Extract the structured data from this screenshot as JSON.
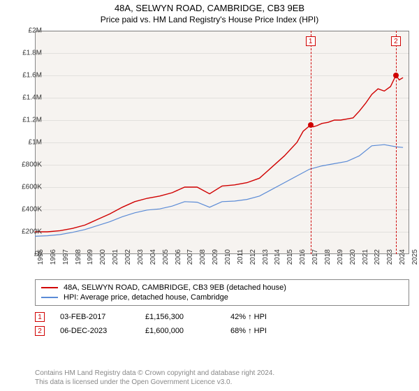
{
  "title_line1": "48A, SELWYN ROAD, CAMBRIDGE, CB3 9EB",
  "title_line2": "Price paid vs. HM Land Registry's House Price Index (HPI)",
  "chart": {
    "type": "line",
    "background_color": "#f6f3f0",
    "grid_color": "rgba(0,0,0,0.08)",
    "border_color": "#888888",
    "xlim": [
      1995,
      2025
    ],
    "ylim": [
      0,
      2000000
    ],
    "ytick_step": 200000,
    "yticks": [
      "£0",
      "£200K",
      "£400K",
      "£600K",
      "£800K",
      "£1M",
      "£1.2M",
      "£1.4M",
      "£1.6M",
      "£1.8M",
      "£2M"
    ],
    "xticks": [
      1995,
      1996,
      1997,
      1998,
      1999,
      2000,
      2001,
      2002,
      2003,
      2004,
      2005,
      2006,
      2007,
      2008,
      2009,
      2010,
      2011,
      2012,
      2013,
      2014,
      2015,
      2016,
      2017,
      2018,
      2019,
      2020,
      2021,
      2022,
      2023,
      2024,
      2025
    ],
    "tick_fontsize": 10,
    "series": [
      {
        "name": "property",
        "label": "48A, SELWYN ROAD, CAMBRIDGE, CB3 9EB (detached house)",
        "color": "#d00000",
        "line_width": 1.4,
        "data": [
          [
            1995,
            200000
          ],
          [
            1996,
            200000
          ],
          [
            1997,
            210000
          ],
          [
            1998,
            230000
          ],
          [
            1999,
            260000
          ],
          [
            2000,
            310000
          ],
          [
            2001,
            360000
          ],
          [
            2002,
            420000
          ],
          [
            2003,
            470000
          ],
          [
            2004,
            500000
          ],
          [
            2005,
            520000
          ],
          [
            2006,
            550000
          ],
          [
            2007,
            600000
          ],
          [
            2008,
            600000
          ],
          [
            2009,
            540000
          ],
          [
            2010,
            610000
          ],
          [
            2011,
            620000
          ],
          [
            2012,
            640000
          ],
          [
            2013,
            680000
          ],
          [
            2014,
            780000
          ],
          [
            2015,
            880000
          ],
          [
            2016,
            1000000
          ],
          [
            2016.5,
            1100000
          ],
          [
            2017.09,
            1156300
          ],
          [
            2017.3,
            1140000
          ],
          [
            2017.6,
            1150000
          ],
          [
            2018,
            1170000
          ],
          [
            2018.5,
            1180000
          ],
          [
            2019,
            1200000
          ],
          [
            2019.5,
            1200000
          ],
          [
            2020,
            1210000
          ],
          [
            2020.5,
            1220000
          ],
          [
            2021,
            1280000
          ],
          [
            2021.5,
            1350000
          ],
          [
            2022,
            1430000
          ],
          [
            2022.5,
            1480000
          ],
          [
            2023,
            1460000
          ],
          [
            2023.5,
            1500000
          ],
          [
            2023.93,
            1600000
          ],
          [
            2024.2,
            1560000
          ],
          [
            2024.5,
            1580000
          ]
        ]
      },
      {
        "name": "hpi",
        "label": "HPI: Average price, detached house, Cambridge",
        "color": "#5b8bd6",
        "line_width": 1.2,
        "data": [
          [
            1995,
            160000
          ],
          [
            1996,
            165000
          ],
          [
            1997,
            175000
          ],
          [
            1998,
            195000
          ],
          [
            1999,
            220000
          ],
          [
            2000,
            255000
          ],
          [
            2001,
            290000
          ],
          [
            2002,
            335000
          ],
          [
            2003,
            370000
          ],
          [
            2004,
            395000
          ],
          [
            2005,
            405000
          ],
          [
            2006,
            430000
          ],
          [
            2007,
            470000
          ],
          [
            2008,
            465000
          ],
          [
            2009,
            420000
          ],
          [
            2010,
            470000
          ],
          [
            2011,
            475000
          ],
          [
            2012,
            490000
          ],
          [
            2013,
            520000
          ],
          [
            2014,
            580000
          ],
          [
            2015,
            640000
          ],
          [
            2016,
            700000
          ],
          [
            2017,
            760000
          ],
          [
            2018,
            790000
          ],
          [
            2019,
            810000
          ],
          [
            2020,
            830000
          ],
          [
            2021,
            880000
          ],
          [
            2022,
            970000
          ],
          [
            2023,
            980000
          ],
          [
            2024,
            960000
          ],
          [
            2024.5,
            955000
          ]
        ]
      }
    ],
    "sale_markers": [
      {
        "n": "1",
        "x": 2017.09,
        "y": 1156300
      },
      {
        "n": "2",
        "x": 2023.93,
        "y": 1600000
      }
    ]
  },
  "sales": [
    {
      "n": "1",
      "date": "03-FEB-2017",
      "price": "£1,156,300",
      "delta": "42% ↑ HPI"
    },
    {
      "n": "2",
      "date": "06-DEC-2023",
      "price": "£1,600,000",
      "delta": "68% ↑ HPI"
    }
  ],
  "footer_line1": "Contains HM Land Registry data © Crown copyright and database right 2024.",
  "footer_line2": "This data is licensed under the Open Government Licence v3.0."
}
